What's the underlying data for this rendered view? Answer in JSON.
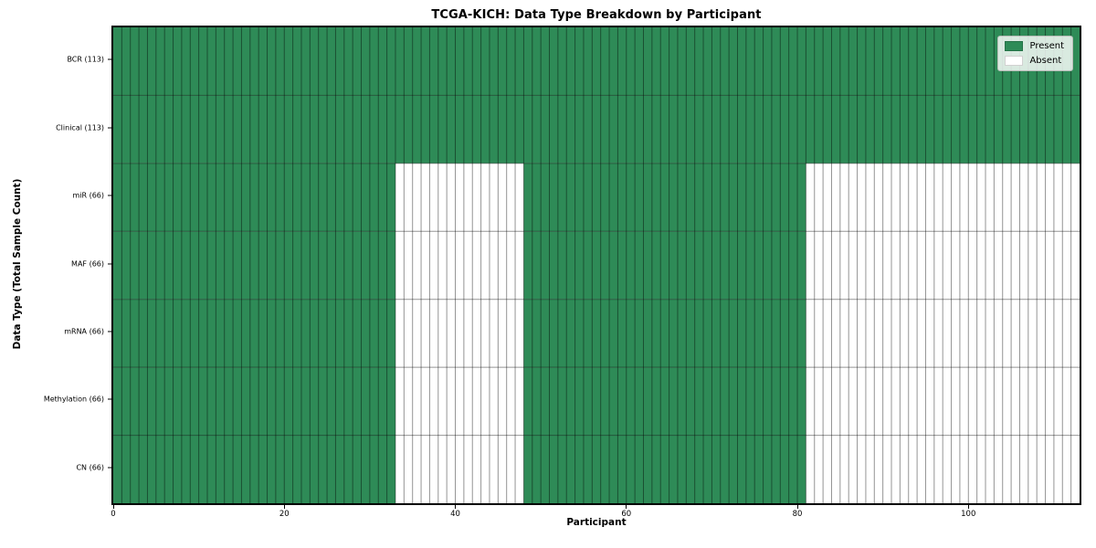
{
  "chart_data": {
    "type": "heatmap",
    "title": "TCGA-KICH: Data Type Breakdown by Participant",
    "xlabel": "Participant",
    "ylabel": "Data Type (Total Sample Count)",
    "n_participants": 113,
    "x_range": [
      0,
      113
    ],
    "x_ticks": [
      0,
      20,
      40,
      60,
      80,
      100
    ],
    "grid": "cell-edges",
    "legend_position": "upper-right",
    "colors": {
      "present": "#2e8b57",
      "absent": "#ffffff",
      "cell_edge": "rgba(0,0,0,0.42)",
      "spine": "#000000"
    },
    "rows": [
      {
        "label": "BCR (113)",
        "name": "BCR",
        "present_count": 113,
        "present_segments": [
          [
            0,
            113
          ]
        ]
      },
      {
        "label": "Clinical (113)",
        "name": "Clinical",
        "present_count": 113,
        "present_segments": [
          [
            0,
            113
          ]
        ]
      },
      {
        "label": "miR (66)",
        "name": "miR",
        "present_count": 66,
        "present_segments": [
          [
            0,
            33
          ],
          [
            48,
            81
          ]
        ]
      },
      {
        "label": "MAF (66)",
        "name": "MAF",
        "present_count": 66,
        "present_segments": [
          [
            0,
            33
          ],
          [
            48,
            81
          ]
        ]
      },
      {
        "label": "mRNA (66)",
        "name": "mRNA",
        "present_count": 66,
        "present_segments": [
          [
            0,
            33
          ],
          [
            48,
            81
          ]
        ]
      },
      {
        "label": "Methylation (66)",
        "name": "Methylation",
        "present_count": 66,
        "present_segments": [
          [
            0,
            33
          ],
          [
            48,
            81
          ]
        ]
      },
      {
        "label": "CN (66)",
        "name": "CN",
        "present_count": 66,
        "present_segments": [
          [
            0,
            33
          ],
          [
            48,
            81
          ]
        ]
      }
    ],
    "legend": [
      {
        "label": "Present",
        "color": "#2e8b57"
      },
      {
        "label": "Absent",
        "color": "#ffffff"
      }
    ]
  }
}
